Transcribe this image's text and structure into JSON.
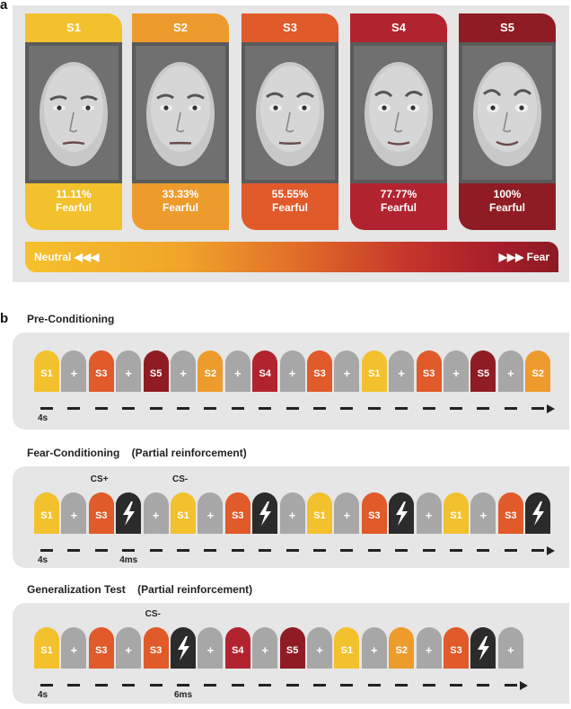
{
  "panel_a": {
    "label": "a",
    "cards": [
      {
        "stim": "S1",
        "pct": "11.11%",
        "word": "Fearful",
        "color": "#f2c12d",
        "furrow": 0
      },
      {
        "stim": "S2",
        "pct": "33.33%",
        "word": "Fearful",
        "color": "#ee9b2d",
        "furrow": 1
      },
      {
        "stim": "S3",
        "pct": "55.55%",
        "word": "Fearful",
        "color": "#e05a2a",
        "furrow": 2
      },
      {
        "stim": "S4",
        "pct": "77.77%",
        "word": "Fearful",
        "color": "#b22330",
        "furrow": 3
      },
      {
        "stim": "S5",
        "pct": "100%",
        "word": "Fearful",
        "color": "#8f1c24",
        "furrow": 4
      }
    ],
    "gradient": {
      "left_label": "Neutral ◀◀◀",
      "right_label": "▶▶▶ Fear"
    }
  },
  "panel_b": {
    "label": "b",
    "colors": {
      "S1": "#f2c12d",
      "S2": "#ee9b2d",
      "S3": "#e05a2a",
      "S4": "#b22330",
      "S5": "#8f1c24",
      "+": "#a7a7a7",
      "shock": "#2b2b2b"
    },
    "sections": [
      {
        "title": "Pre-Conditioning",
        "sequence": [
          "S1",
          "+",
          "S3",
          "+",
          "S5",
          "+",
          "S2",
          "+",
          "S4",
          "+",
          "S3",
          "+",
          "S1",
          "+",
          "S3",
          "+",
          "S5",
          "+",
          "S2"
        ],
        "notes": [
          {
            "text": "4s",
            "tile": 0,
            "pos": "below"
          }
        ]
      },
      {
        "title": "Fear-Conditioning    (Partial reinforcement)",
        "sequence": [
          "S1",
          "+",
          "S3",
          "shock",
          "+",
          "S1",
          "+",
          "S3",
          "shock",
          "+",
          "S1",
          "+",
          "S3",
          "shock",
          "+",
          "S1",
          "+",
          "S3",
          "shock"
        ],
        "notes": [
          {
            "text": "CS+",
            "tile": 2,
            "pos": "above"
          },
          {
            "text": "CS-",
            "tile": 5,
            "pos": "above"
          },
          {
            "text": "4s",
            "tile": 0,
            "pos": "below"
          },
          {
            "text": "4ms",
            "tile": 3,
            "pos": "below"
          }
        ]
      },
      {
        "title": "Generalization Test    (Partial reinforcement)",
        "sequence": [
          "S1",
          "+",
          "S3",
          "+",
          "S3",
          "shock",
          "+",
          "S4",
          "+",
          "S5",
          "+",
          "S1",
          "+",
          "S2",
          "+",
          "S3",
          "shock",
          "+"
        ],
        "notes": [
          {
            "text": "CS-",
            "tile": 4,
            "pos": "above"
          },
          {
            "text": "4s",
            "tile": 0,
            "pos": "below"
          },
          {
            "text": "6ms",
            "tile": 5,
            "pos": "below"
          }
        ]
      }
    ]
  }
}
